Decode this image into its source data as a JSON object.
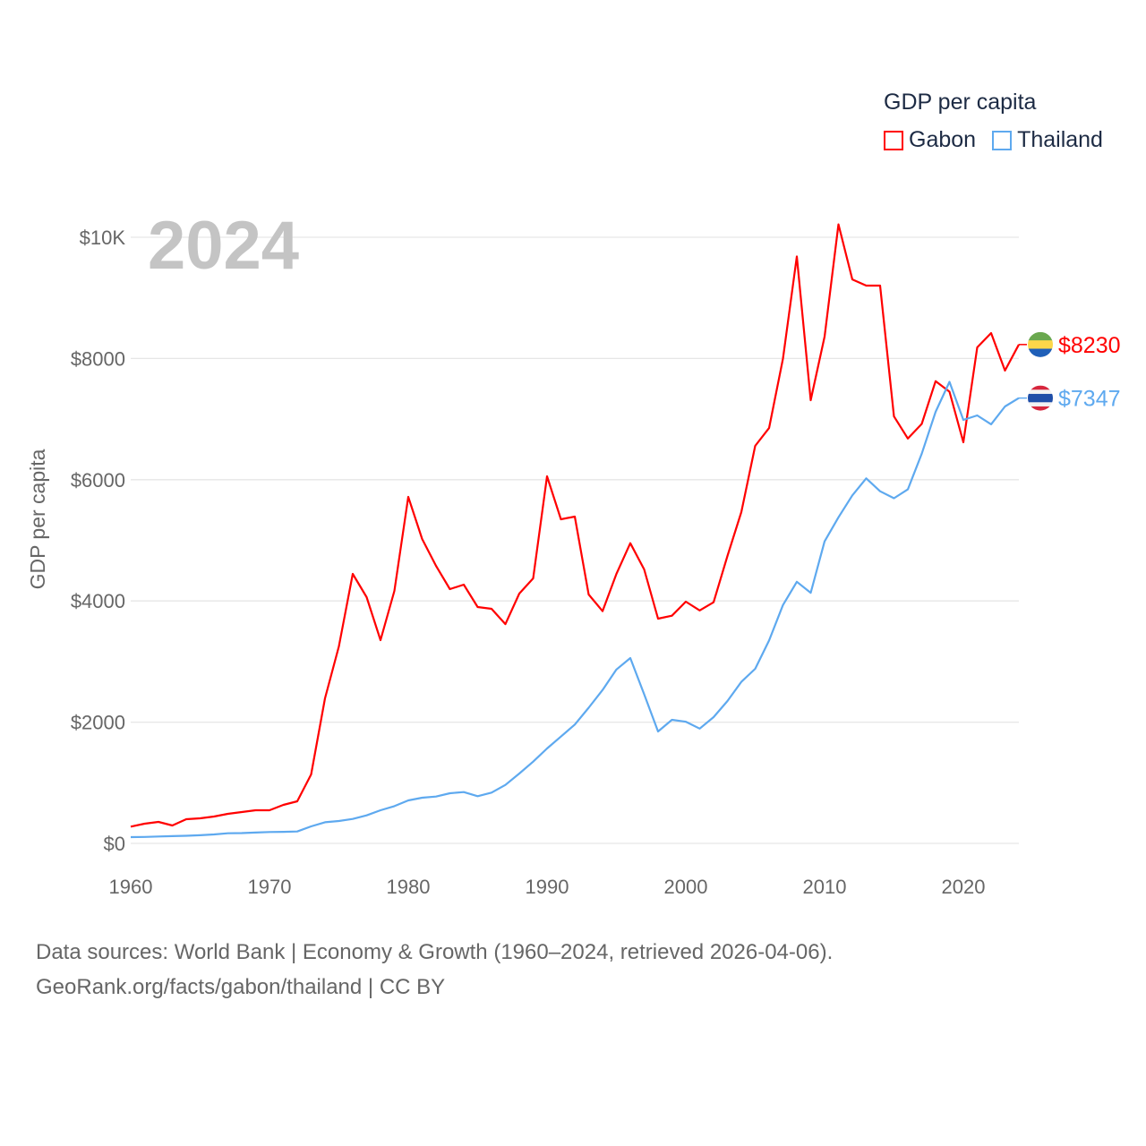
{
  "chart_data": {
    "type": "line",
    "title": "GDP per capita",
    "ylabel": "GDP per capita",
    "xlabel": "",
    "year_label": "2024",
    "ylim": [
      0,
      10500
    ],
    "xlim": [
      1960,
      2024
    ],
    "grid": true,
    "legend_placement": "top-right",
    "y_ticks": [
      {
        "value": 0,
        "label": "$0"
      },
      {
        "value": 2000,
        "label": "$2000"
      },
      {
        "value": 4000,
        "label": "$4000"
      },
      {
        "value": 6000,
        "label": "$6000"
      },
      {
        "value": 8000,
        "label": "$8000"
      },
      {
        "value": 10000,
        "label": "$10K"
      }
    ],
    "x_ticks": [
      1960,
      1970,
      1980,
      1990,
      2000,
      2010,
      2020
    ],
    "x_tick_labels": [
      "1960",
      "1970",
      "1980",
      "1990",
      "2000",
      "2010",
      "2020"
    ],
    "x_start": 1960,
    "series": [
      {
        "name": "Gabon",
        "color": "#ff0000",
        "end_label": "$8230",
        "flag": "gabon-flag",
        "values": [
          276,
          325,
          354,
          295,
          399,
          413,
          443,
          487,
          517,
          546,
          546,
          635,
          694,
          1137,
          2393,
          3250,
          4446,
          4062,
          3353,
          4165,
          5716,
          5022,
          4579,
          4195,
          4269,
          3899,
          3870,
          3618,
          4121,
          4372,
          6056,
          5347,
          5391,
          4106,
          3831,
          4446,
          4952,
          4520,
          3707,
          3756,
          3988,
          3843,
          3978,
          4741,
          5465,
          6558,
          6853,
          7995,
          9682,
          7311,
          8360,
          10213,
          9305,
          9202,
          9202,
          7045,
          6680,
          6920,
          7626,
          7452,
          6617,
          8183,
          8419,
          7801,
          8230
        ]
      },
      {
        "name": "Thailand",
        "color": "#5ea9ef",
        "end_label": "$7347",
        "flag": "thailand-flag",
        "values": [
          103,
          106,
          113,
          120,
          125,
          135,
          148,
          167,
          170,
          178,
          188,
          190,
          197,
          281,
          349,
          369,
          403,
          462,
          546,
          615,
          709,
          753,
          772,
          827,
          847,
          778,
          837,
          965,
          1152,
          1349,
          1566,
          1762,
          1960,
          2238,
          2530,
          2868,
          3057,
          2459,
          1846,
          2038,
          2008,
          1893,
          2082,
          2348,
          2664,
          2880,
          3347,
          3932,
          4316,
          4135,
          4982,
          5379,
          5741,
          6022,
          5810,
          5694,
          5840,
          6429,
          7119,
          7615,
          6986,
          7060,
          6914,
          7208,
          7347
        ]
      }
    ]
  },
  "legend": {
    "title": "GDP per capita",
    "items": [
      "Gabon",
      "Thailand"
    ]
  },
  "source": {
    "line1": "Data sources: World Bank | Economy & Growth (1960–2024, retrieved 2026-04-06).",
    "line2": "GeoRank.org/facts/gabon/thailand | CC BY"
  }
}
